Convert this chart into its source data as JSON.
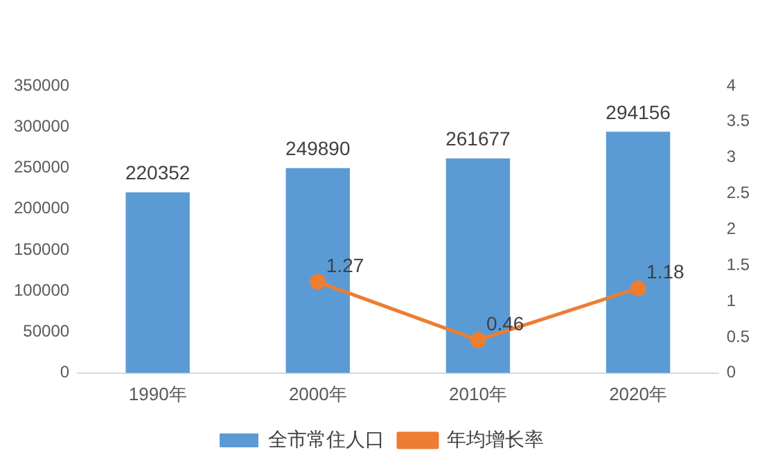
{
  "chart_data": {
    "type": "bar",
    "categories": [
      "1990年",
      "2000年",
      "2010年",
      "2020年"
    ],
    "series": [
      {
        "name": "全市常住人口",
        "color": "#5b9bd5",
        "values": [
          220352,
          249890,
          261677,
          294156
        ]
      },
      {
        "name": "年均增长率",
        "type": "line",
        "axis": "y2",
        "color": "#ed7d31",
        "marker": "circle",
        "values": [
          null,
          1.27,
          0.46,
          1.18
        ]
      }
    ],
    "ylim": [
      0,
      350000
    ],
    "yticks": [
      0,
      50000,
      100000,
      150000,
      200000,
      250000,
      300000,
      350000
    ],
    "y2lim": [
      0,
      4
    ],
    "y2ticks": [
      0,
      0.5,
      1,
      1.5,
      2,
      2.5,
      3,
      3.5,
      4
    ],
    "data_labels": true,
    "legend": "bottom",
    "grid": false
  }
}
